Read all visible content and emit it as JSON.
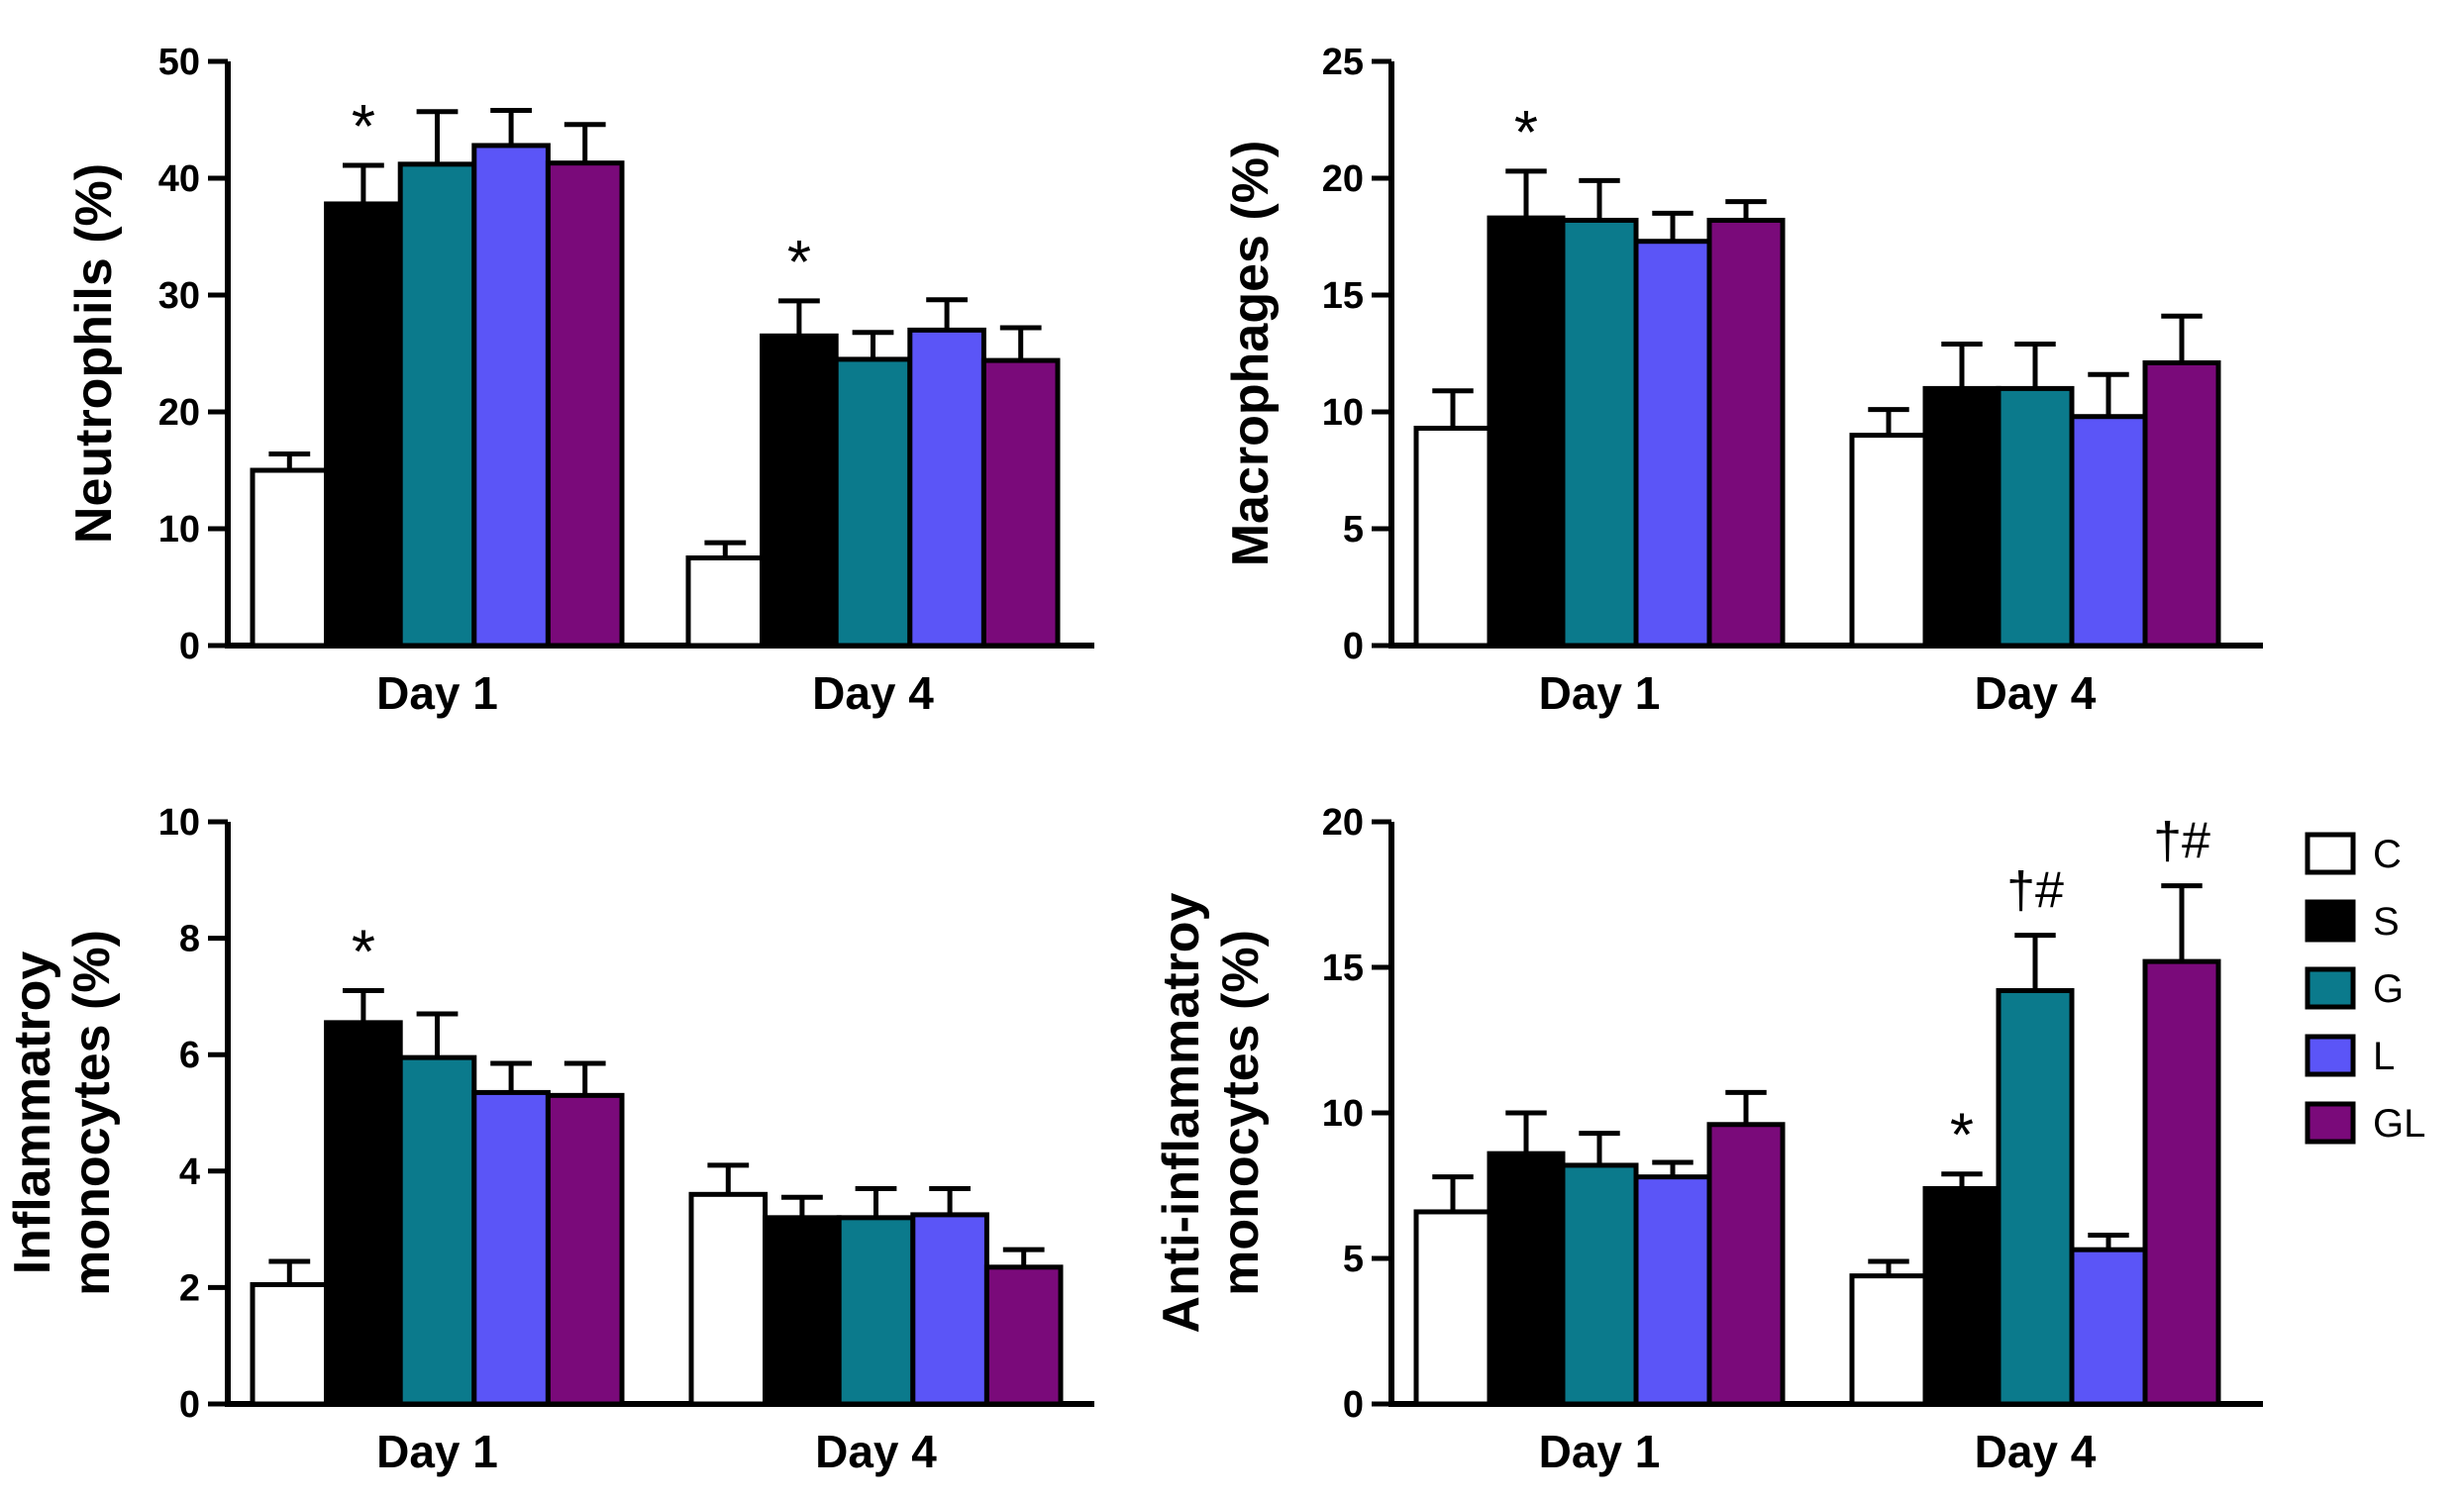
{
  "legend": [
    {
      "name": "C",
      "color": "#ffffff"
    },
    {
      "name": "S",
      "color": "#000000"
    },
    {
      "name": "G",
      "color": "#0b7a8c"
    },
    {
      "name": "L",
      "color": "#5b55f7"
    },
    {
      "name": "GL",
      "color": "#7a0a7a"
    }
  ],
  "chart_data": [
    {
      "type": "bar",
      "ylabel": [
        "Neutrophils (%)"
      ],
      "ylim": [
        0,
        50
      ],
      "yticks": [
        0,
        10,
        20,
        30,
        40,
        50
      ],
      "categories": [
        "Day 1",
        "Day 4"
      ],
      "series": [
        {
          "name": "C",
          "values": [
            15,
            7.5
          ],
          "errors": [
            1.4,
            1.3
          ]
        },
        {
          "name": "S",
          "values": [
            37.8,
            26.5
          ],
          "errors": [
            3.3,
            3.0
          ]
        },
        {
          "name": "G",
          "values": [
            41.2,
            24.5
          ],
          "errors": [
            4.5,
            2.3
          ]
        },
        {
          "name": "L",
          "values": [
            42.8,
            27.0
          ],
          "errors": [
            3.0,
            2.6
          ]
        },
        {
          "name": "GL",
          "values": [
            41.3,
            24.4
          ],
          "errors": [
            3.3,
            2.8
          ]
        }
      ],
      "annotations": [
        {
          "category": "Day 1",
          "series": "S",
          "text": "*"
        },
        {
          "category": "Day 4",
          "series": "S",
          "text": "*"
        }
      ]
    },
    {
      "type": "bar",
      "ylabel": [
        "Macrophages (%)"
      ],
      "ylim": [
        0,
        25
      ],
      "yticks": [
        0,
        5,
        10,
        15,
        20,
        25
      ],
      "categories": [
        "Day 1",
        "Day 4"
      ],
      "series": [
        {
          "name": "C",
          "values": [
            9.3,
            9.0
          ],
          "errors": [
            1.6,
            1.1
          ]
        },
        {
          "name": "S",
          "values": [
            18.3,
            11.0
          ],
          "errors": [
            2.0,
            1.9
          ]
        },
        {
          "name": "G",
          "values": [
            18.2,
            11.0
          ],
          "errors": [
            1.7,
            1.9
          ]
        },
        {
          "name": "L",
          "values": [
            17.3,
            9.8
          ],
          "errors": [
            1.2,
            1.8
          ]
        },
        {
          "name": "GL",
          "values": [
            18.2,
            12.1
          ],
          "errors": [
            0.8,
            2.0
          ]
        }
      ],
      "annotations": [
        {
          "category": "Day 1",
          "series": "S",
          "text": "*"
        }
      ]
    },
    {
      "type": "bar",
      "ylabel": [
        "Inflammatroy",
        "monocytes (%)"
      ],
      "ylim": [
        0,
        10
      ],
      "yticks": [
        0,
        2,
        4,
        6,
        8,
        10
      ],
      "categories": [
        "Day 1",
        "Day 4"
      ],
      "series": [
        {
          "name": "C",
          "values": [
            2.05,
            3.6
          ],
          "errors": [
            0.4,
            0.5
          ]
        },
        {
          "name": "S",
          "values": [
            6.55,
            3.2
          ],
          "errors": [
            0.55,
            0.35
          ]
        },
        {
          "name": "G",
          "values": [
            5.95,
            3.2
          ],
          "errors": [
            0.75,
            0.5
          ]
        },
        {
          "name": "L",
          "values": [
            5.35,
            3.25
          ],
          "errors": [
            0.5,
            0.45
          ]
        },
        {
          "name": "GL",
          "values": [
            5.3,
            2.35
          ],
          "errors": [
            0.55,
            0.3
          ]
        }
      ],
      "annotations": [
        {
          "category": "Day 1",
          "series": "S",
          "text": "*"
        }
      ]
    },
    {
      "type": "bar",
      "ylabel": [
        "Anti-inflammatroy",
        "monocytes (%)"
      ],
      "ylim": [
        0,
        20
      ],
      "yticks": [
        0,
        5,
        10,
        15,
        20
      ],
      "categories": [
        "Day 1",
        "Day 4"
      ],
      "series": [
        {
          "name": "C",
          "values": [
            6.6,
            4.4
          ],
          "errors": [
            1.2,
            0.5
          ]
        },
        {
          "name": "S",
          "values": [
            8.6,
            7.4
          ],
          "errors": [
            1.4,
            0.5
          ]
        },
        {
          "name": "G",
          "values": [
            8.2,
            14.2
          ],
          "errors": [
            1.1,
            1.9
          ]
        },
        {
          "name": "L",
          "values": [
            7.8,
            5.3
          ],
          "errors": [
            0.5,
            0.5
          ]
        },
        {
          "name": "GL",
          "values": [
            9.6,
            15.2
          ],
          "errors": [
            1.1,
            2.6
          ]
        }
      ],
      "annotations": [
        {
          "category": "Day 4",
          "series": "S",
          "text": "*"
        },
        {
          "category": "Day 4",
          "series": "G",
          "text": "†#"
        },
        {
          "category": "Day 4",
          "series": "GL",
          "text": "†#"
        }
      ]
    }
  ]
}
